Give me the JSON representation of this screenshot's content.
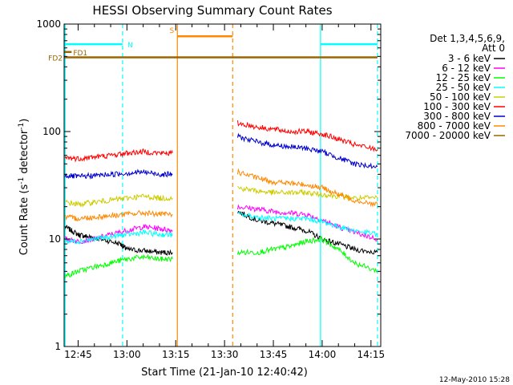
{
  "chart_data": {
    "type": "line",
    "title": "HESSI Observing Summary Count Rates",
    "xlabel": "Start Time (21-Jan-10 12:40:42)",
    "ylabel_main": "Count Rate (s",
    "ylabel_sup1": "-1",
    "ylabel_mid": " detector",
    "ylabel_sup2": "-1",
    "ylabel_end": ")",
    "y_scale": "log",
    "ylim": [
      1,
      1000
    ],
    "xlim": [
      "12:40:42",
      "14:18:00"
    ],
    "x_ticks": [
      "12:45",
      "13:00",
      "13:15",
      "13:30",
      "13:45",
      "14:00",
      "14:15"
    ],
    "y_ticks": [
      "1",
      "10",
      "100",
      "1000"
    ],
    "timestamp": "12-May-2010 15:28",
    "legend": {
      "placement": "right",
      "header": [
        "Det 1,3,4,5,6,9,",
        "Att 0"
      ],
      "entries": [
        {
          "label": "3 - 6 keV",
          "color": "#000000"
        },
        {
          "label": "6 - 12 keV",
          "color": "#ff00ff"
        },
        {
          "label": "12 - 25 keV",
          "color": "#00ff00"
        },
        {
          "label": "25 - 50 keV",
          "color": "#00ffff"
        },
        {
          "label": "50 - 100 keV",
          "color": "#cccc00"
        },
        {
          "label": "100 - 300 keV",
          "color": "#ff0000"
        },
        {
          "label": "300 - 800 keV",
          "color": "#0000cc"
        },
        {
          "label": "800 - 7000 keV",
          "color": "#ff8800"
        },
        {
          "label": "7000 - 20000 keV",
          "color": "#996600"
        }
      ]
    },
    "flags": [
      {
        "label": "N",
        "color": "#00ffff",
        "value": 650,
        "segments": [
          [
            "12:40:42",
            "12:58:40"
          ],
          [
            "13:59:30",
            "14:17:00"
          ]
        ]
      },
      {
        "label": "S",
        "color": "#ff8800",
        "value": 770,
        "segments": [
          [
            "13:15:30",
            "13:32:30"
          ]
        ]
      },
      {
        "label": "FD1",
        "color": "#996600",
        "value": 550,
        "segments": [
          [
            "12:40:42",
            "12:43:00"
          ]
        ]
      },
      {
        "label": "FD2",
        "color": "#996600",
        "value": 490,
        "segments": [
          [
            "12:40:42",
            "14:17:00"
          ]
        ]
      }
    ],
    "vertical_markers": [
      {
        "time": "12:41:00",
        "color": "#00ffff",
        "style": "solid"
      },
      {
        "time": "12:58:40",
        "color": "#00ffff",
        "style": "dashed"
      },
      {
        "time": "13:15:30",
        "color": "#ff8800",
        "style": "solid"
      },
      {
        "time": "13:32:30",
        "color": "#ff8800",
        "style": "dashed"
      },
      {
        "time": "13:59:30",
        "color": "#00ffff",
        "style": "solid"
      },
      {
        "time": "14:17:00",
        "color": "#00ffff",
        "style": "dashed"
      }
    ],
    "series": [
      {
        "name": "3 - 6 keV",
        "color": "#000000",
        "segments": [
          [
            [
              "12:41",
              13
            ],
            [
              "12:45",
              11
            ],
            [
              "12:48",
              10.5
            ],
            [
              "12:52",
              10
            ],
            [
              "12:58",
              9
            ],
            [
              "13:00",
              8
            ],
            [
              "13:05",
              7.8
            ],
            [
              "13:10",
              7.5
            ],
            [
              "13:14",
              7.5
            ]
          ],
          [
            [
              "13:34",
              18
            ],
            [
              "13:40",
              15
            ],
            [
              "13:45",
              14
            ],
            [
              "13:50",
              13
            ],
            [
              "13:55",
              12
            ],
            [
              "14:00",
              10
            ],
            [
              "14:05",
              9
            ],
            [
              "14:10",
              8
            ],
            [
              "14:17",
              7.5
            ]
          ]
        ]
      },
      {
        "name": "6 - 12 keV",
        "color": "#ff00ff",
        "segments": [
          [
            [
              "12:41",
              10
            ],
            [
              "12:45",
              9.5
            ],
            [
              "12:50",
              10
            ],
            [
              "12:55",
              11
            ],
            [
              "13:00",
              12
            ],
            [
              "13:05",
              13
            ],
            [
              "13:10",
              12.5
            ],
            [
              "13:14",
              12
            ]
          ],
          [
            [
              "13:34",
              20
            ],
            [
              "13:40",
              19
            ],
            [
              "13:45",
              18
            ],
            [
              "13:50",
              17.5
            ],
            [
              "13:55",
              17
            ],
            [
              "14:00",
              15
            ],
            [
              "14:05",
              13
            ],
            [
              "14:10",
              11.5
            ],
            [
              "14:17",
              10
            ]
          ]
        ]
      },
      {
        "name": "12 - 25 keV",
        "color": "#00ff00",
        "segments": [
          [
            [
              "12:41",
              4.5
            ],
            [
              "12:45",
              5
            ],
            [
              "12:50",
              5.5
            ],
            [
              "12:55",
              6
            ],
            [
              "13:00",
              6.5
            ],
            [
              "13:05",
              6.8
            ],
            [
              "13:10",
              6.5
            ],
            [
              "13:14",
              6.5
            ]
          ],
          [
            [
              "13:34",
              7.5
            ],
            [
              "13:40",
              7.5
            ],
            [
              "13:45",
              8
            ],
            [
              "13:50",
              8.5
            ],
            [
              "13:55",
              9.5
            ],
            [
              "14:00",
              10
            ],
            [
              "14:05",
              8
            ],
            [
              "14:10",
              6
            ],
            [
              "14:17",
              5
            ]
          ]
        ]
      },
      {
        "name": "25 - 50 keV",
        "color": "#00ffff",
        "segments": [
          [
            [
              "12:41",
              9.5
            ],
            [
              "12:45",
              9.5
            ],
            [
              "12:50",
              10
            ],
            [
              "12:55",
              10.5
            ],
            [
              "13:00",
              11
            ],
            [
              "13:05",
              11.5
            ],
            [
              "13:10",
              11
            ],
            [
              "13:14",
              11
            ]
          ],
          [
            [
              "13:34",
              17
            ],
            [
              "13:40",
              16
            ],
            [
              "13:45",
              15.5
            ],
            [
              "13:50",
              15.5
            ],
            [
              "13:55",
              15.5
            ],
            [
              "14:00",
              14.5
            ],
            [
              "14:05",
              13
            ],
            [
              "14:10",
              12
            ],
            [
              "14:17",
              11
            ]
          ]
        ]
      },
      {
        "name": "50 - 100 keV",
        "color": "#cccc00",
        "segments": [
          [
            [
              "12:41",
              22
            ],
            [
              "12:45",
              21
            ],
            [
              "12:50",
              22
            ],
            [
              "12:55",
              23
            ],
            [
              "13:00",
              24
            ],
            [
              "13:05",
              25
            ],
            [
              "13:10",
              24
            ],
            [
              "13:14",
              24
            ]
          ],
          [
            [
              "13:34",
              30
            ],
            [
              "13:40",
              28
            ],
            [
              "13:45",
              27
            ],
            [
              "13:50",
              27
            ],
            [
              "13:55",
              27
            ],
            [
              "14:00",
              26
            ],
            [
              "14:05",
              25
            ],
            [
              "14:10",
              24
            ],
            [
              "14:17",
              24
            ]
          ]
        ]
      },
      {
        "name": "100 - 300 keV",
        "color": "#ff0000",
        "segments": [
          [
            [
              "12:41",
              57
            ],
            [
              "12:45",
              56
            ],
            [
              "12:50",
              58
            ],
            [
              "12:55",
              60
            ],
            [
              "13:00",
              63
            ],
            [
              "13:05",
              65
            ],
            [
              "13:10",
              63
            ],
            [
              "13:14",
              63
            ]
          ],
          [
            [
              "13:34",
              120
            ],
            [
              "13:40",
              110
            ],
            [
              "13:45",
              105
            ],
            [
              "13:50",
              100
            ],
            [
              "13:55",
              100
            ],
            [
              "14:00",
              95
            ],
            [
              "14:05",
              85
            ],
            [
              "14:10",
              75
            ],
            [
              "14:17",
              68
            ]
          ]
        ]
      },
      {
        "name": "300 - 800 keV",
        "color": "#0000cc",
        "segments": [
          [
            [
              "12:41",
              39
            ],
            [
              "12:45",
              38
            ],
            [
              "12:50",
              39
            ],
            [
              "12:55",
              40
            ],
            [
              "13:00",
              41
            ],
            [
              "13:05",
              42
            ],
            [
              "13:10",
              40
            ],
            [
              "13:14",
              40
            ]
          ],
          [
            [
              "13:34",
              90
            ],
            [
              "13:40",
              80
            ],
            [
              "13:45",
              75
            ],
            [
              "13:50",
              72
            ],
            [
              "13:55",
              70
            ],
            [
              "14:00",
              65
            ],
            [
              "14:05",
              57
            ],
            [
              "14:10",
              50
            ],
            [
              "14:17",
              47
            ]
          ]
        ]
      },
      {
        "name": "800 - 7000 keV",
        "color": "#ff8800",
        "segments": [
          [
            [
              "12:41",
              16
            ],
            [
              "12:45",
              15.5
            ],
            [
              "12:50",
              16
            ],
            [
              "12:55",
              16.5
            ],
            [
              "13:00",
              17
            ],
            [
              "13:05",
              17.5
            ],
            [
              "13:10",
              17
            ],
            [
              "13:14",
              17
            ]
          ],
          [
            [
              "13:34",
              42
            ],
            [
              "13:40",
              37
            ],
            [
              "13:45",
              34
            ],
            [
              "13:50",
              33
            ],
            [
              "13:55",
              32
            ],
            [
              "14:00",
              30
            ],
            [
              "14:05",
              26
            ],
            [
              "14:10",
              23
            ],
            [
              "14:17",
              21
            ]
          ]
        ]
      }
    ]
  }
}
